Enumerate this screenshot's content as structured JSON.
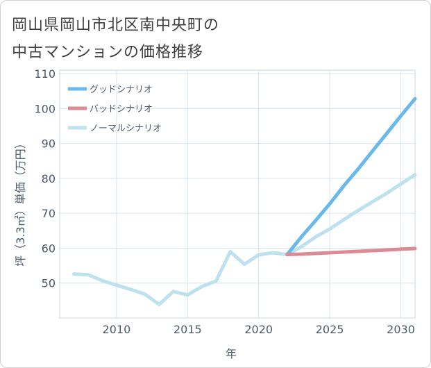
{
  "title": {
    "line1": "岡山県岡山市北区南中央町の",
    "line2": "中古マンションの価格推移"
  },
  "chart_data": {
    "type": "line",
    "xlabel": "年",
    "ylabel": "坪（3.3㎡）単価（万円）",
    "xlim": [
      2006,
      2031
    ],
    "ylim": [
      40,
      111
    ],
    "xticks": [
      2010,
      2015,
      2020,
      2025,
      2030
    ],
    "yticks": [
      50,
      60,
      70,
      80,
      90,
      100,
      110
    ],
    "grid": true,
    "legend_position": "top-left",
    "series": [
      {
        "name": "ノーマルシナリオ",
        "color": "#bde1ef",
        "x": [
          2007,
          2008,
          2009,
          2010,
          2011,
          2012,
          2013,
          2014,
          2015,
          2016,
          2017,
          2018,
          2019,
          2020,
          2021,
          2022,
          2023,
          2024,
          2025,
          2026,
          2027,
          2028,
          2029,
          2030,
          2031
        ],
        "y": [
          52.6,
          52.4,
          50.7,
          49.4,
          48.2,
          46.8,
          43.9,
          47.6,
          46.6,
          49.0,
          50.6,
          59.0,
          55.4,
          58.1,
          58.7,
          58.2,
          60.4,
          63.2,
          65.5,
          68.2,
          70.8,
          73.3,
          75.7,
          78.4,
          81.0
        ]
      },
      {
        "name": "グッドシナリオ",
        "color": "#6ab9ea",
        "x": [
          2022,
          2023,
          2024,
          2025,
          2026,
          2027,
          2028,
          2029,
          2030,
          2031
        ],
        "y": [
          58.2,
          63.2,
          67.9,
          72.7,
          77.9,
          82.7,
          87.8,
          92.8,
          97.9,
          102.8
        ]
      },
      {
        "name": "バッドシナリオ",
        "color": "#dc8a93",
        "x": [
          2022,
          2023,
          2024,
          2025,
          2026,
          2027,
          2028,
          2029,
          2030,
          2031
        ],
        "y": [
          58.2,
          58.3,
          58.5,
          58.7,
          58.9,
          59.1,
          59.3,
          59.5,
          59.7,
          59.9
        ]
      }
    ],
    "legend": [
      "グッドシナリオ",
      "バッドシナリオ",
      "ノーマルシナリオ"
    ]
  }
}
